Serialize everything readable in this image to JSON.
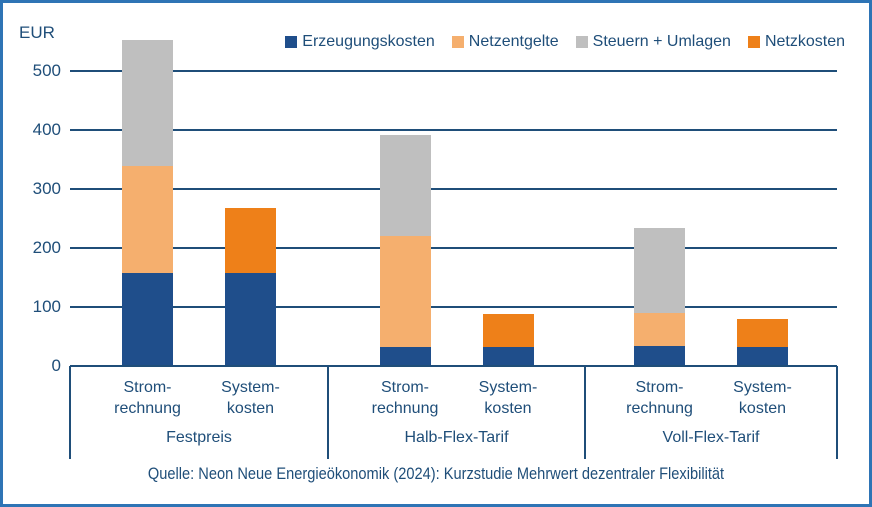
{
  "frame": {
    "border_color": "#2E74B5",
    "background": "#FFFFFF"
  },
  "colors": {
    "axis": "#1F4E79",
    "text": "#1F4E79",
    "erzeugungskosten": "#1F4E8B",
    "netzentgelte": "#F5AF6E",
    "steuern_umlagen": "#BFBFBF",
    "netzkosten": "#EE8019"
  },
  "source_note": "Quelle: Neon Neue Energieökonomik (2024): Kurzstudie Mehrwert dezentraler Flexibilität",
  "chart_data": {
    "type": "bar",
    "stacked": true,
    "title": "",
    "unit_label": "EUR",
    "xlabel": "",
    "ylabel": "EUR",
    "ylim": [
      0,
      560
    ],
    "y_ticks": [
      500,
      400,
      300,
      200,
      100,
      0
    ],
    "grid": true,
    "legend": {
      "position": "top-right",
      "entries": [
        {
          "name": "Erzeugungskosten",
          "color": "#1F4E8B"
        },
        {
          "name": "Netzentgelte",
          "color": "#F5AF6E"
        },
        {
          "name": "Steuern + Umlagen",
          "color": "#BFBFBF"
        },
        {
          "name": "Netzkosten",
          "color": "#EE8019"
        }
      ]
    },
    "groups": [
      {
        "label": "Festpreis",
        "bars": [
          {
            "label_lines": [
              "Strom-",
              "rechnung"
            ],
            "total": 552,
            "segments": [
              {
                "series": "Erzeugungskosten",
                "value": 157
              },
              {
                "series": "Netzentgelte",
                "value": 182
              },
              {
                "series": "Steuern + Umlagen",
                "value": 213
              }
            ]
          },
          {
            "label_lines": [
              "System-",
              "kosten"
            ],
            "total": 267,
            "segments": [
              {
                "series": "Erzeugungskosten",
                "value": 157
              },
              {
                "series": "Netzkosten",
                "value": 110
              }
            ]
          }
        ]
      },
      {
        "label": "Halb-Flex-Tarif",
        "bars": [
          {
            "label_lines": [
              "Strom-",
              "rechnung"
            ],
            "total": 392,
            "segments": [
              {
                "series": "Erzeugungskosten",
                "value": 32
              },
              {
                "series": "Netzentgelte",
                "value": 189
              },
              {
                "series": "Steuern + Umlagen",
                "value": 171
              }
            ]
          },
          {
            "label_lines": [
              "System-",
              "kosten"
            ],
            "total": 88,
            "segments": [
              {
                "series": "Erzeugungskosten",
                "value": 32
              },
              {
                "series": "Netzkosten",
                "value": 56
              }
            ]
          }
        ]
      },
      {
        "label": "Voll-Flex-Tarif",
        "bars": [
          {
            "label_lines": [
              "Strom-",
              "rechnung"
            ],
            "total": 234,
            "segments": [
              {
                "series": "Erzeugungskosten",
                "value": 34
              },
              {
                "series": "Netzentgelte",
                "value": 55
              },
              {
                "series": "Steuern + Umlagen",
                "value": 145
              }
            ]
          },
          {
            "label_lines": [
              "System-",
              "kosten"
            ],
            "total": 80,
            "segments": [
              {
                "series": "Erzeugungskosten",
                "value": 33
              },
              {
                "series": "Netzkosten",
                "value": 47
              }
            ]
          }
        ]
      }
    ]
  }
}
